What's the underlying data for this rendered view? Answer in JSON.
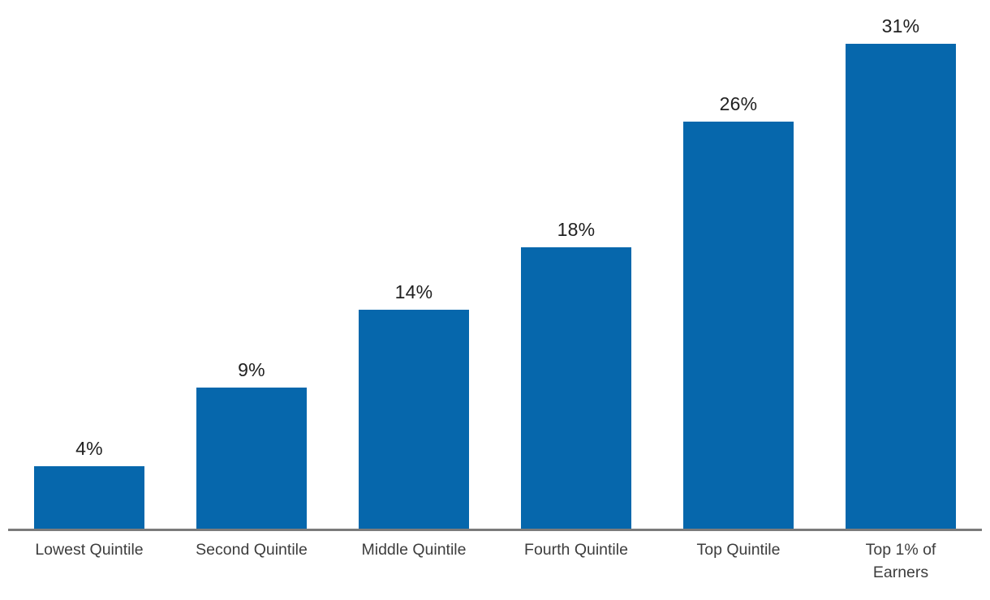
{
  "chart_data": {
    "type": "bar",
    "title": "",
    "categories": [
      "Lowest Quintile",
      "Second Quintile",
      "Middle Quintile",
      "Fourth Quintile",
      "Top Quintile",
      "Top 1% of Earners"
    ],
    "category_label_lines": [
      [
        "Lowest Quintile"
      ],
      [
        "Second Quintile"
      ],
      [
        "Middle Quintile"
      ],
      [
        "Fourth Quintile"
      ],
      [
        "Top Quintile"
      ],
      [
        "Top 1% of",
        "Earners"
      ]
    ],
    "values": [
      4,
      9,
      14,
      18,
      26,
      31
    ],
    "value_labels": [
      "4%",
      "9%",
      "14%",
      "18%",
      "26%",
      "31%"
    ],
    "xlabel": "",
    "ylabel": "",
    "ylim": [
      0,
      31
    ],
    "grid": false,
    "legend": "none",
    "colors": {
      "bar": "#0667ac",
      "axis_line": "#7b7b7b",
      "value_label": "#212121",
      "category_label": "#3d3d3d",
      "background": "#ffffff"
    }
  }
}
